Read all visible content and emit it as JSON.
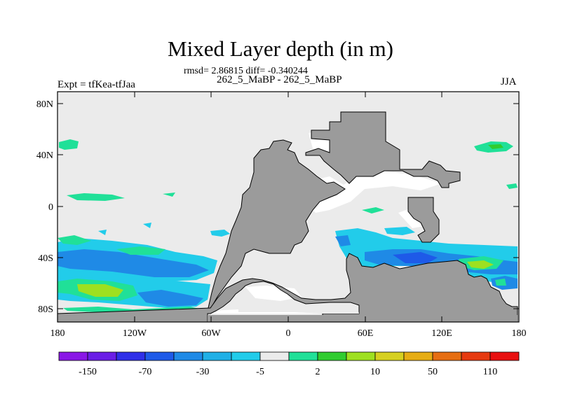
{
  "title": "Mixed Layer depth (in m)",
  "stats_line": "rmsd= 2.86815 diff= -0.340244",
  "case_line": "262_5_MaBP - 262_5_MaBP",
  "experiment_label": "Expt = tfKea-tfJaa",
  "season_label": "JJA",
  "lat_ticks": [
    "80N",
    "40N",
    "0",
    "40S",
    "80S"
  ],
  "lon_ticks": [
    "180",
    "120W",
    "60W",
    "0",
    "60E",
    "120E",
    "180"
  ],
  "colorbar": {
    "colors": [
      "#8a17e6",
      "#6a1ee6",
      "#2f2fe8",
      "#1e5ae8",
      "#1f8ae6",
      "#20b0e6",
      "#22ccea",
      "#ebebeb",
      "#20e098",
      "#30cc30",
      "#9ee020",
      "#d6d020",
      "#e6ad14",
      "#e66e12",
      "#e63a10",
      "#e81010"
    ],
    "labels": [
      "-150",
      "-70",
      "-30",
      "-5",
      "2",
      "10",
      "50",
      "110"
    ]
  },
  "legend_colors": {
    "land": "#9b9b9b",
    "ocean_near_zero": "#ebebeb",
    "shallower_light": "#22ccea",
    "shallower_medium": "#1f8ae6",
    "shallower_strong": "#1e5ae8",
    "deeper_light": "#20e098",
    "deeper_medium": "#30cc30",
    "deeper_strong": "#9ee020"
  }
}
